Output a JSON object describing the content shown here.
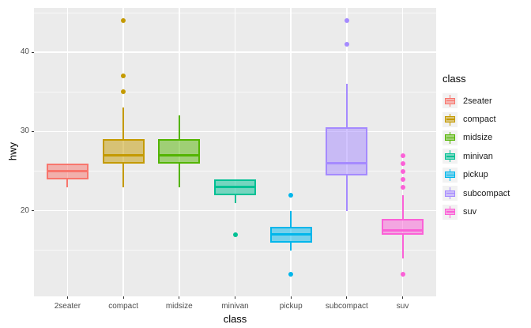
{
  "chart_data": {
    "type": "boxplot",
    "title": "",
    "xlabel": "class",
    "ylabel": "hwy",
    "ylim": [
      9.2,
      45.6
    ],
    "y_major_ticks": [
      20,
      30,
      40
    ],
    "y_minor_gridlines": [
      15,
      25,
      35,
      45
    ],
    "categories": [
      "2seater",
      "compact",
      "midsize",
      "minivan",
      "pickup",
      "subcompact",
      "suv"
    ],
    "series": [
      {
        "name": "2seater",
        "color": "#F8766D",
        "whisker_low": 23,
        "q1": 24,
        "median": 25,
        "q3": 26,
        "whisker_high": 26,
        "outliers": []
      },
      {
        "name": "compact",
        "color": "#C49A00",
        "whisker_low": 23,
        "q1": 26,
        "median": 27,
        "q3": 29,
        "whisker_high": 33,
        "outliers": [
          35,
          37,
          44
        ]
      },
      {
        "name": "midsize",
        "color": "#53B400",
        "whisker_low": 23,
        "q1": 26,
        "median": 27,
        "q3": 29,
        "whisker_high": 32,
        "outliers": []
      },
      {
        "name": "minivan",
        "color": "#00C094",
        "whisker_low": 21,
        "q1": 22,
        "median": 23,
        "q3": 24,
        "whisker_high": 24,
        "outliers": [
          17
        ]
      },
      {
        "name": "pickup",
        "color": "#00B6EB",
        "whisker_low": 15,
        "q1": 16,
        "median": 17,
        "q3": 18,
        "whisker_high": 20,
        "outliers": [
          12,
          22
        ]
      },
      {
        "name": "subcompact",
        "color": "#A58AFF",
        "whisker_low": 20,
        "q1": 24.5,
        "median": 26,
        "q3": 30.5,
        "whisker_high": 36,
        "outliers": [
          41,
          44
        ]
      },
      {
        "name": "suv",
        "color": "#FB61D7",
        "whisker_low": 14,
        "q1": 17,
        "median": 17.5,
        "q3": 19,
        "whisker_high": 22,
        "outliers": [
          12,
          23,
          24,
          25,
          26,
          27
        ]
      }
    ],
    "legend": {
      "title": "class",
      "position": "right",
      "entries": [
        "2seater",
        "compact",
        "midsize",
        "minivan",
        "pickup",
        "subcompact",
        "suv"
      ]
    },
    "theme": {
      "panel_bg": "#EBEBEB",
      "grid_color": "#FFFFFF",
      "tick_label_color": "#4D4D4D",
      "axis_title_color": "#000000",
      "legend_key_bg": "#F2F2F2",
      "outer_bg": "#FFFFFF",
      "box_fill_alpha": 0.5
    }
  }
}
